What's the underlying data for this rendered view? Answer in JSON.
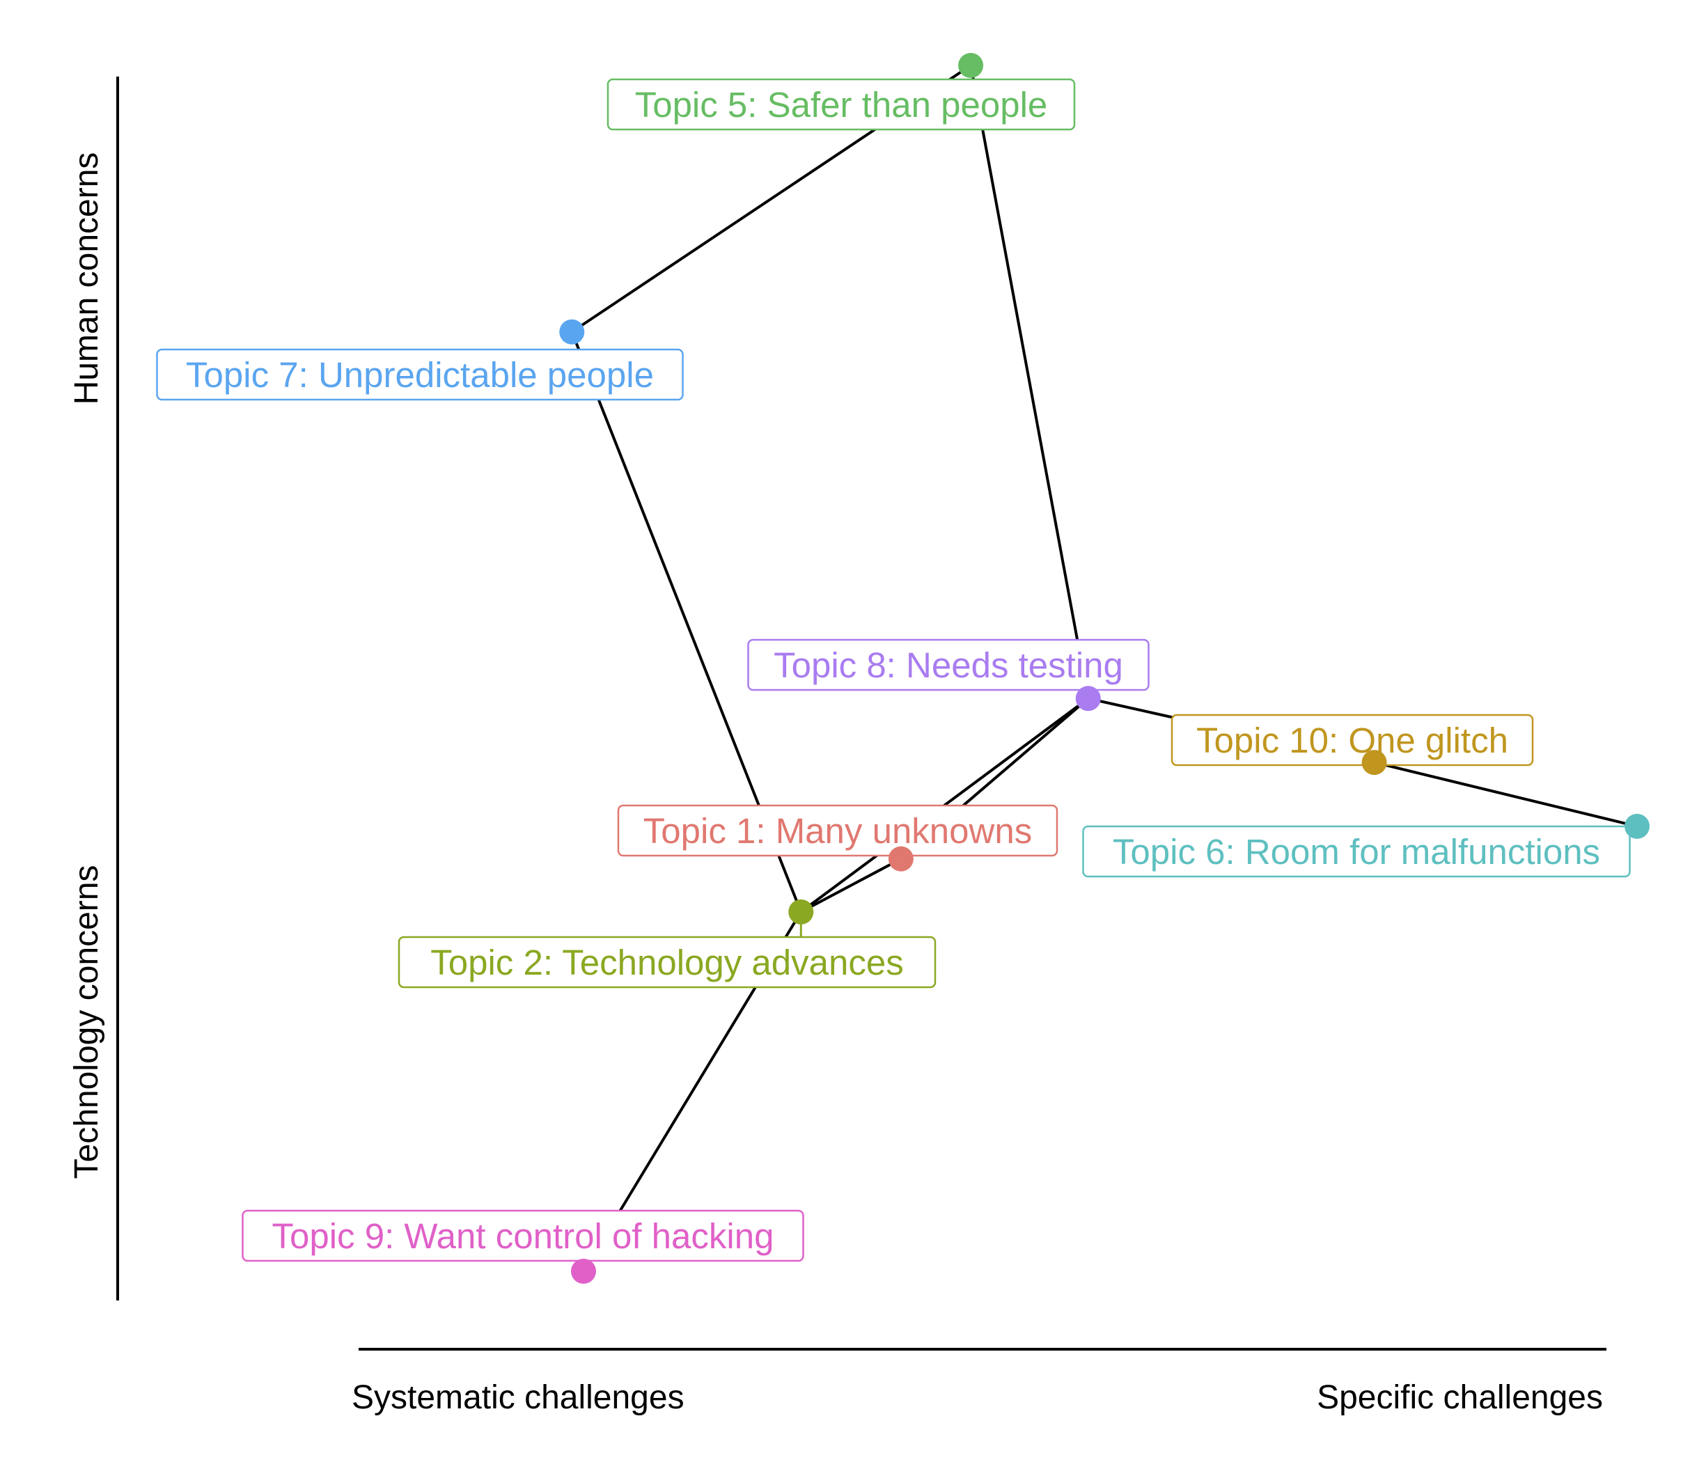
{
  "chart_data": {
    "type": "scatter",
    "title": "",
    "xlabel": "",
    "ylabel": "",
    "axes": {
      "x": {
        "left_label": "Systematic challenges",
        "right_label": "Specific challenges"
      },
      "y": {
        "top_label": "Human concerns",
        "bottom_label": "Technology concerns"
      }
    },
    "xlim": [
      0,
      100
    ],
    "ylim": [
      0,
      100
    ],
    "grid": false,
    "legend": "none",
    "points": [
      {
        "id": "t1",
        "label": "Topic 1: Many unknowns",
        "x": 36.7,
        "y": 34.2,
        "color": "#E07870"
      },
      {
        "id": "t2",
        "label": "Topic 2: Technology advances",
        "x": 28.1,
        "y": 29.8,
        "color": "#8AA822"
      },
      {
        "id": "t5",
        "label": "Topic 5: Safer than people",
        "x": 42.7,
        "y": 100.0,
        "color": "#66BD63"
      },
      {
        "id": "t6",
        "label": "Topic 6: Room for malfunctions",
        "x": 100.0,
        "y": 36.9,
        "color": "#5EBFC0"
      },
      {
        "id": "t7",
        "label": "Topic 7: Unpredictable people",
        "x": 8.4,
        "y": 77.9,
        "color": "#5AA5F0"
      },
      {
        "id": "t8",
        "label": "Topic 8: Needs testing",
        "x": 52.8,
        "y": 47.5,
        "color": "#A97CF0"
      },
      {
        "id": "t9",
        "label": "Topic 9: Want control of hacking",
        "x": 9.4,
        "y": 0.0,
        "color": "#E060C8"
      },
      {
        "id": "t10",
        "label": "Topic 10: One glitch",
        "x": 77.4,
        "y": 42.2,
        "color": "#C0961F"
      }
    ],
    "edges": [
      [
        "t5",
        "t7"
      ],
      [
        "t5",
        "t8"
      ],
      [
        "t7",
        "t2"
      ],
      [
        "t9",
        "t2"
      ],
      [
        "t2",
        "t1"
      ],
      [
        "t2",
        "t8"
      ],
      [
        "t1",
        "t8"
      ],
      [
        "t8",
        "t10"
      ],
      [
        "t10",
        "t6"
      ]
    ]
  }
}
